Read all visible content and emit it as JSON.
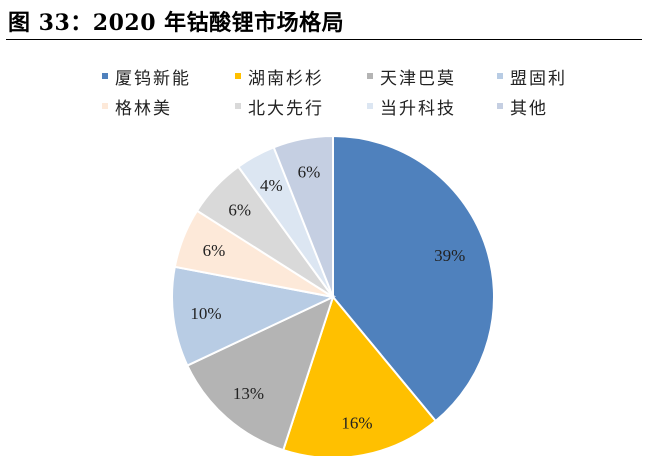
{
  "figure": {
    "title": "图 33：2020 年钴酸锂市场格局"
  },
  "chart_data": {
    "type": "pie",
    "title": "",
    "slices": [
      {
        "label": "厦钨新能",
        "value": 39,
        "display": "39%",
        "color": "#4f81bd"
      },
      {
        "label": "湖南杉杉",
        "value": 16,
        "display": "16%",
        "color": "#ffc000"
      },
      {
        "label": "天津巴莫",
        "value": 13,
        "display": "13%",
        "color": "#b4b4b4"
      },
      {
        "label": "盟固利",
        "value": 10,
        "display": "10%",
        "color": "#b8cce4"
      },
      {
        "label": "格林美",
        "value": 6,
        "display": "6%",
        "color": "#fde9d9"
      },
      {
        "label": "北大先行",
        "value": 6,
        "display": "6%",
        "color": "#d9d9d9"
      },
      {
        "label": "当升科技",
        "value": 4,
        "display": "4%",
        "color": "#dce6f2"
      },
      {
        "label": "其他",
        "value": 6,
        "display": "6%",
        "color": "#c5cfe2"
      }
    ],
    "legend_position": "top"
  }
}
